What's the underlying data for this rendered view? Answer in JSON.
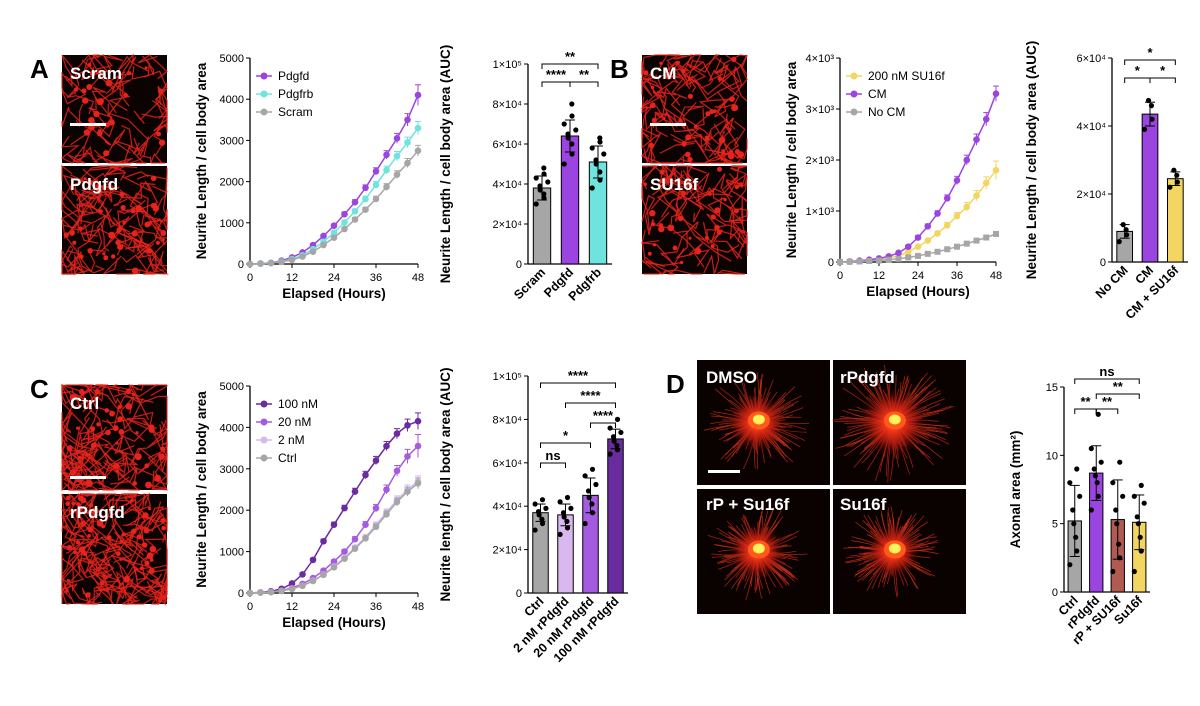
{
  "colors": {
    "purple": "#9b45e0",
    "cyan": "#6fe3dd",
    "grey": "#a6a6a6",
    "yellow": "#f3d561",
    "dark_purple": "#6a2b9e",
    "mid_purple": "#a55be0",
    "light_purple": "#d8b8ef",
    "brick": "#b05a52",
    "neuron_red": "#e8231b",
    "black": "#000000"
  },
  "panels": {
    "A": {
      "letter": "A",
      "images": [
        {
          "label": "Scram"
        },
        {
          "label": "Pdgfd"
        }
      ],
      "line": {
        "type": "line",
        "xlabel": "Elapsed (Hours)",
        "ylabel": "Neurite Length / cell body area",
        "xlim": [
          0,
          48
        ],
        "xticks": [
          0,
          12,
          24,
          36,
          48
        ],
        "xtick_labels": [
          "0",
          "12",
          "24",
          "36",
          "48"
        ],
        "ylim": [
          0,
          5000
        ],
        "yticks": [
          0,
          1000,
          2000,
          3000,
          4000,
          5000
        ],
        "ytick_labels": [
          "0",
          "1000",
          "2000",
          "3000",
          "4000",
          "5000"
        ],
        "x": [
          0,
          3,
          6,
          9,
          12,
          15,
          18,
          21,
          24,
          27,
          30,
          33,
          36,
          39,
          42,
          45,
          48
        ],
        "legend_position": "top-left",
        "series": [
          {
            "name": "Pdgfd",
            "color": "#9b45e0",
            "values": [
              0,
              10,
              30,
              80,
              160,
              280,
              460,
              680,
              930,
              1210,
              1500,
              1850,
              2250,
              2650,
              3050,
              3500,
              4100
            ],
            "errors": [
              0,
              5,
              8,
              12,
              18,
              22,
              28,
              34,
              40,
              50,
              60,
              70,
              85,
              100,
              120,
              150,
              250
            ]
          },
          {
            "name": "Pdgfrb",
            "color": "#6fe3dd",
            "values": [
              0,
              10,
              25,
              60,
              120,
              210,
              360,
              540,
              760,
              1010,
              1280,
              1580,
              1920,
              2280,
              2620,
              2950,
              3300
            ],
            "errors": [
              0,
              5,
              8,
              12,
              15,
              20,
              25,
              30,
              35,
              45,
              55,
              65,
              80,
              95,
              110,
              130,
              160
            ]
          },
          {
            "name": "Scram",
            "color": "#a6a6a6",
            "values": [
              0,
              10,
              20,
              50,
              100,
              180,
              300,
              460,
              640,
              850,
              1080,
              1320,
              1580,
              1870,
              2170,
              2450,
              2750
            ],
            "errors": [
              0,
              5,
              6,
              8,
              10,
              14,
              20,
              25,
              30,
              38,
              45,
              55,
              65,
              80,
              95,
              110,
              130
            ]
          }
        ]
      },
      "bar": {
        "type": "bar",
        "ylabel": "Neurite Length / cell body area (AUC)",
        "ylim": [
          0,
          100000
        ],
        "yticks": [
          0,
          20000,
          40000,
          60000,
          80000,
          100000
        ],
        "ytick_labels": [
          "0",
          "2×10⁴",
          "4×10⁴",
          "6×10⁴",
          "8×10⁴",
          "1×10⁵"
        ],
        "categories": [
          "Scram",
          "Pdgfd",
          "Pdgfrb"
        ],
        "values": [
          38000,
          64000,
          51000
        ],
        "errors": [
          6000,
          8000,
          8000
        ],
        "colors": [
          "#a6a6a6",
          "#9b45e0",
          "#6fe3dd"
        ],
        "points": [
          [
            30000,
            33000,
            35000,
            37000,
            39000,
            41000,
            43000,
            45000,
            48000
          ],
          [
            50000,
            55000,
            60000,
            63000,
            65000,
            67000,
            70000,
            74000,
            80000
          ],
          [
            38000,
            42000,
            46000,
            50000,
            52000,
            55000,
            58000,
            61000,
            63000
          ]
        ],
        "significance": [
          {
            "from": 0,
            "to": 1,
            "label": "****",
            "level": 1
          },
          {
            "from": 1,
            "to": 2,
            "label": "**",
            "level": 1
          },
          {
            "from": 0,
            "to": 2,
            "label": "**",
            "level": 2
          }
        ]
      }
    },
    "B": {
      "letter": "B",
      "images": [
        {
          "label": "CM"
        },
        {
          "label": "SU16f"
        }
      ],
      "line": {
        "type": "line",
        "xlabel": "Elapsed (Hours)",
        "ylabel": "Neurite Length / cell body area",
        "xlim": [
          0,
          48
        ],
        "xticks": [
          0,
          12,
          24,
          36,
          48
        ],
        "xtick_labels": [
          "0",
          "12",
          "24",
          "36",
          "48"
        ],
        "ylim": [
          0,
          4000
        ],
        "yticks": [
          0,
          1000,
          2000,
          3000,
          4000
        ],
        "ytick_labels": [
          "0",
          "1×10³",
          "2×10³",
          "3×10³",
          "4×10³"
        ],
        "x": [
          0,
          3,
          6,
          9,
          12,
          15,
          18,
          21,
          24,
          27,
          30,
          33,
          36,
          39,
          42,
          45,
          48
        ],
        "legend_position": "top-left",
        "series": [
          {
            "name": "200 nM SU16f",
            "color": "#f3d561",
            "values": [
              0,
              10,
              20,
              35,
              50,
              80,
              120,
              200,
              300,
              420,
              560,
              720,
              900,
              1080,
              1300,
              1550,
              1800
            ],
            "errors": [
              0,
              5,
              6,
              8,
              10,
              12,
              15,
              20,
              25,
              35,
              45,
              55,
              70,
              85,
              100,
              120,
              180
            ]
          },
          {
            "name": "CM",
            "color": "#9b45e0",
            "values": [
              0,
              10,
              25,
              45,
              70,
              110,
              180,
              300,
              480,
              700,
              950,
              1250,
              1600,
              2000,
              2400,
              2800,
              3300
            ],
            "errors": [
              0,
              5,
              6,
              8,
              10,
              12,
              18,
              25,
              35,
              45,
              55,
              65,
              80,
              95,
              110,
              130,
              150
            ]
          },
          {
            "name": "No CM",
            "color": "#a6a6a6",
            "values": [
              0,
              5,
              10,
              20,
              30,
              45,
              60,
              90,
              120,
              160,
              200,
              250,
              300,
              360,
              420,
              480,
              550
            ],
            "errors": [
              0,
              3,
              4,
              5,
              6,
              7,
              8,
              10,
              12,
              14,
              16,
              18,
              20,
              22,
              25,
              28,
              30
            ]
          }
        ]
      },
      "bar": {
        "type": "bar",
        "ylabel": "Neurite Length / cell body area (AUC)",
        "ylim": [
          0,
          60000
        ],
        "yticks": [
          0,
          20000,
          40000,
          60000
        ],
        "ytick_labels": [
          "0",
          "2×10⁴",
          "4×10⁴",
          "6×10⁴"
        ],
        "categories": [
          "No CM",
          "CM",
          "CM + SU16f"
        ],
        "values": [
          9000,
          43500,
          24500
        ],
        "errors": [
          2000,
          3500,
          2000
        ],
        "colors": [
          "#a6a6a6",
          "#9b45e0",
          "#f3d561"
        ],
        "points": [
          [
            6000,
            8000,
            9500,
            11000
          ],
          [
            39000,
            42000,
            46000,
            47500
          ],
          [
            22000,
            23500,
            25500,
            27000
          ]
        ],
        "significance": [
          {
            "from": 0,
            "to": 1,
            "label": "*",
            "level": 1
          },
          {
            "from": 1,
            "to": 2,
            "label": "*",
            "level": 1
          },
          {
            "from": 0,
            "to": 2,
            "label": "*",
            "level": 2
          }
        ]
      }
    },
    "C": {
      "letter": "C",
      "images": [
        {
          "label": "Ctrl"
        },
        {
          "label": "rPdgfd"
        }
      ],
      "line": {
        "type": "line",
        "xlabel": "Elapsed (Hours)",
        "ylabel": "Neurite Length / cell body area",
        "xlim": [
          0,
          48
        ],
        "xticks": [
          0,
          12,
          24,
          36,
          48
        ],
        "xtick_labels": [
          "0",
          "12",
          "24",
          "36",
          "48"
        ],
        "ylim": [
          0,
          5000
        ],
        "yticks": [
          0,
          1000,
          2000,
          3000,
          4000,
          5000
        ],
        "ytick_labels": [
          "0",
          "1000",
          "2000",
          "3000",
          "4000",
          "5000"
        ],
        "x": [
          0,
          3,
          6,
          9,
          12,
          15,
          18,
          21,
          24,
          27,
          30,
          33,
          36,
          39,
          42,
          45,
          48
        ],
        "legend_position": "top-left",
        "series": [
          {
            "name": "100 nM",
            "color": "#6a2b9e",
            "values": [
              0,
              15,
              40,
              100,
              230,
              450,
              800,
              1250,
              1650,
              2050,
              2450,
              2850,
              3200,
              3550,
              3850,
              4050,
              4150
            ],
            "errors": [
              0,
              5,
              8,
              12,
              20,
              30,
              40,
              50,
              60,
              70,
              80,
              90,
              100,
              110,
              120,
              150,
              200
            ]
          },
          {
            "name": "20 nM",
            "color": "#a55be0",
            "values": [
              0,
              10,
              25,
              60,
              120,
              220,
              360,
              540,
              760,
              1000,
              1300,
              1650,
              2050,
              2500,
              2950,
              3300,
              3550
            ],
            "errors": [
              0,
              5,
              8,
              10,
              15,
              20,
              25,
              32,
              40,
              50,
              60,
              75,
              90,
              110,
              130,
              170,
              280
            ]
          },
          {
            "name": "2 nM",
            "color": "#d8b8ef",
            "values": [
              0,
              10,
              20,
              50,
              100,
              180,
              300,
              450,
              640,
              850,
              1100,
              1350,
              1650,
              1950,
              2250,
              2500,
              2700
            ],
            "errors": [
              0,
              5,
              6,
              8,
              10,
              14,
              20,
              25,
              30,
              38,
              45,
              55,
              65,
              80,
              95,
              110,
              130
            ]
          },
          {
            "name": "Ctrl",
            "color": "#a6a6a6",
            "values": [
              0,
              10,
              20,
              50,
              100,
              175,
              290,
              440,
              620,
              830,
              1070,
              1320,
              1600,
              1900,
              2200,
              2450,
              2650
            ],
            "errors": [
              0,
              5,
              6,
              8,
              10,
              14,
              20,
              25,
              30,
              38,
              45,
              55,
              65,
              80,
              95,
              110,
              130
            ]
          }
        ]
      },
      "bar": {
        "type": "bar",
        "ylabel": "Neurite length / cell body area (AUC)",
        "ylim": [
          0,
          100000
        ],
        "yticks": [
          0,
          20000,
          40000,
          60000,
          80000,
          100000
        ],
        "ytick_labels": [
          "0",
          "2×10⁴",
          "4×10⁴",
          "6×10⁴",
          "8×10⁴",
          "1×10⁵"
        ],
        "categories": [
          "Ctrl",
          "2 nM rPdgfd",
          "20 nM rPdgfd",
          "100 nM rPdgfd"
        ],
        "values": [
          37000,
          36000,
          45000,
          71000
        ],
        "errors": [
          4000,
          5000,
          8000,
          4500
        ],
        "colors": [
          "#a6a6a6",
          "#d8b8ef",
          "#a55be0",
          "#6a2b9e"
        ],
        "points": [
          [
            29000,
            32000,
            34000,
            36000,
            37500,
            39000,
            41000,
            43000
          ],
          [
            27000,
            30000,
            33000,
            35000,
            37000,
            39000,
            42000,
            44000
          ],
          [
            32000,
            37000,
            41000,
            44000,
            47000,
            50000,
            54000,
            57000
          ],
          [
            64000,
            66000,
            68000,
            70000,
            72000,
            74000,
            76000,
            80000
          ]
        ],
        "significance": [
          {
            "from": 0,
            "to": 1,
            "label": "ns",
            "level": 1
          },
          {
            "from": 0,
            "to": 2,
            "label": "*",
            "level": 2
          },
          {
            "from": 2,
            "to": 3,
            "label": "****",
            "level": 3
          },
          {
            "from": 1,
            "to": 3,
            "label": "****",
            "level": 4
          },
          {
            "from": 0,
            "to": 3,
            "label": "****",
            "level": 5
          }
        ]
      }
    },
    "D": {
      "letter": "D",
      "images": [
        {
          "label": "DMSO"
        },
        {
          "label": "rPdgfd"
        },
        {
          "label": "rP + Su16f"
        },
        {
          "label": "Su16f"
        }
      ],
      "bar": {
        "type": "bar",
        "ylabel": "Axonal area (mm²)",
        "ylim": [
          0,
          15
        ],
        "yticks": [
          0,
          5,
          10,
          15
        ],
        "ytick_labels": [
          "0",
          "5",
          "10",
          "15"
        ],
        "categories": [
          "Ctrl",
          "rPdgfd",
          "rP + SU16f",
          "Su16f"
        ],
        "values": [
          5.2,
          8.7,
          5.3,
          5.1
        ],
        "errors": [
          2.6,
          2.0,
          2.9,
          2.0
        ],
        "colors": [
          "#a6a6a6",
          "#9b45e0",
          "#b05a52",
          "#f3d561"
        ],
        "points": [
          [
            2.0,
            3.0,
            4.0,
            5.0,
            6.0,
            7.0,
            8.0,
            9.0
          ],
          [
            6.0,
            7.0,
            8.0,
            8.5,
            9.0,
            9.5,
            10.5,
            13.0
          ],
          [
            1.5,
            2.5,
            3.5,
            5.0,
            6.0,
            7.0,
            8.0,
            9.5
          ],
          [
            1.5,
            3.0,
            4.0,
            5.0,
            5.5,
            6.5,
            7.0,
            7.8
          ]
        ],
        "significance": [
          {
            "from": 0,
            "to": 1,
            "label": "**",
            "level": 1
          },
          {
            "from": 1,
            "to": 2,
            "label": "**",
            "level": 1
          },
          {
            "from": 1,
            "to": 3,
            "label": "**",
            "level": 2
          },
          {
            "from": 0,
            "to": 3,
            "label": "ns",
            "level": 3
          }
        ]
      }
    }
  }
}
